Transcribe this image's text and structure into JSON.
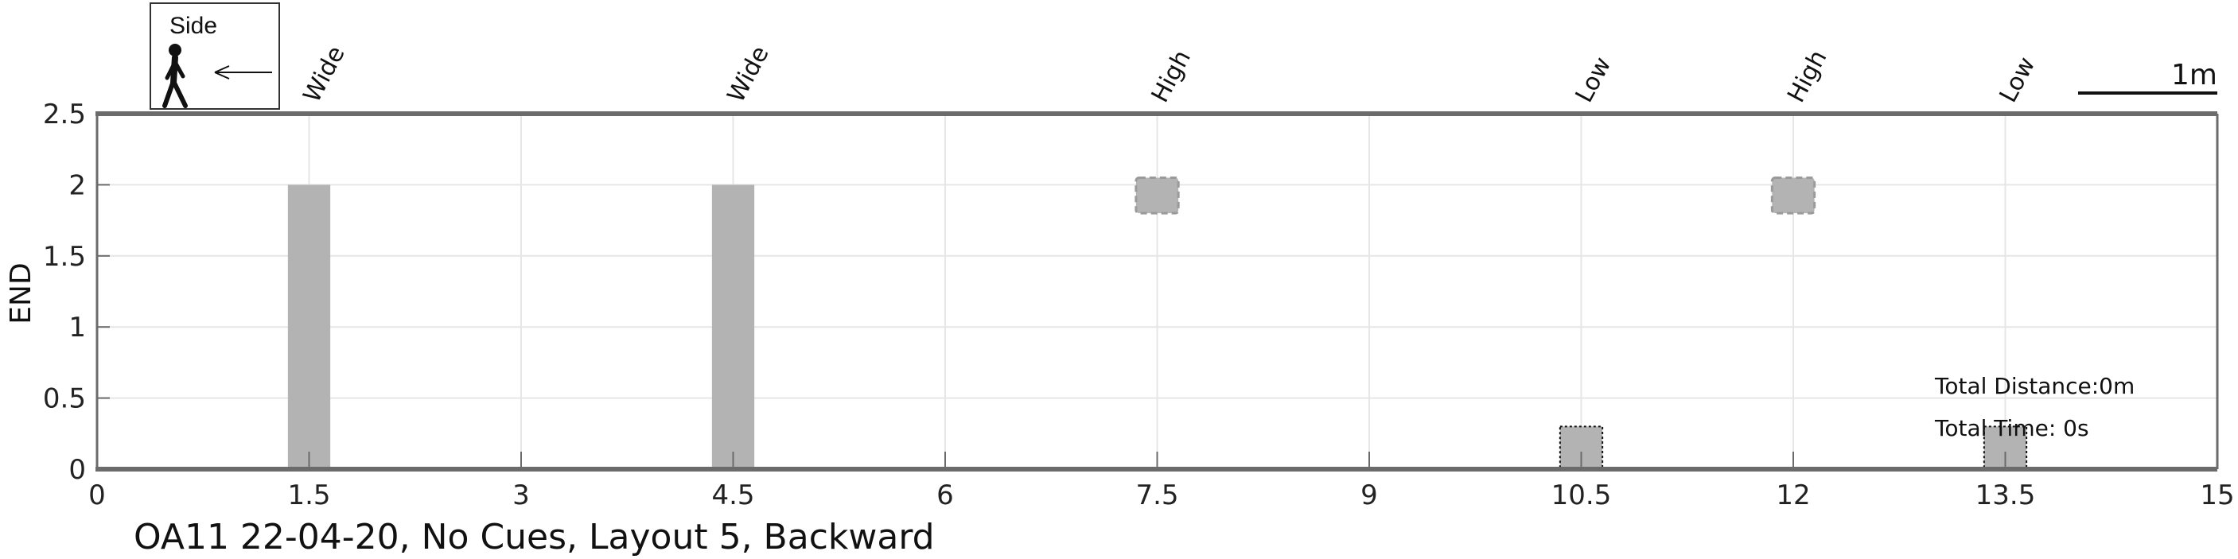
{
  "chart_data": {
    "type": "bar",
    "caption": "OA11 22-04-20, No Cues, Layout 5, Backward",
    "ylabel": "END",
    "xlim": [
      0,
      15
    ],
    "ylim": [
      0,
      2.5
    ],
    "x_ticks": [
      "0",
      "1.5",
      "3",
      "4.5",
      "6",
      "7.5",
      "9",
      "10.5",
      "12",
      "13.5",
      "15"
    ],
    "y_ticks": [
      "0",
      "0.5",
      "1",
      "1.5",
      "2",
      "2.5"
    ],
    "grid": true,
    "obstacles": [
      {
        "label": "Wide",
        "x": 1.5,
        "bottom": 0,
        "top": 2.0,
        "style": "solid"
      },
      {
        "label": "Wide",
        "x": 4.5,
        "bottom": 0,
        "top": 2.0,
        "style": "solid"
      },
      {
        "label": "High",
        "x": 7.5,
        "bottom": 1.8,
        "top": 2.05,
        "style": "dashed"
      },
      {
        "label": "Low",
        "x": 10.5,
        "bottom": 0,
        "top": 0.3,
        "style": "dotted"
      },
      {
        "label": "High",
        "x": 12,
        "bottom": 1.8,
        "top": 2.05,
        "style": "dashed"
      },
      {
        "label": "Low",
        "x": 13.5,
        "bottom": 0,
        "top": 0.3,
        "style": "dotted"
      }
    ],
    "annotations": {
      "total_distance": "Total Distance:0m",
      "total_time": "Total Time: 0s"
    },
    "scale_bar_label": "1m",
    "legend": {
      "label": "Side",
      "icon": "walking-person-icon",
      "direction_icon": "left-arrow-icon"
    },
    "colors": {
      "bar": "#b3b3b3",
      "axis": "#6b6b6b",
      "grid": "#e6e6e6"
    }
  }
}
